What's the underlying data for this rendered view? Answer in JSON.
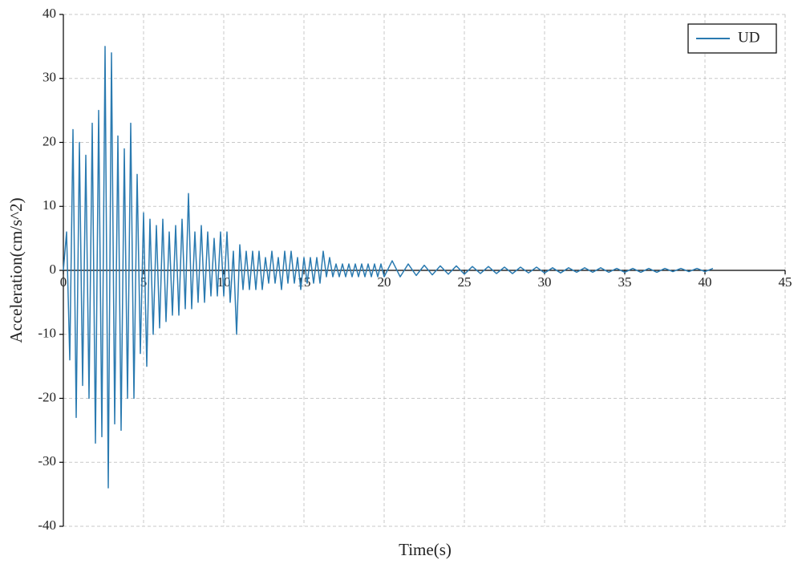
{
  "chart_data": {
    "type": "line",
    "xlabel": "Time(s)",
    "ylabel": "Acceleration(cm/s^2)",
    "xlim": [
      0,
      45
    ],
    "ylim": [
      -40,
      40
    ],
    "xticks": [
      0,
      5,
      10,
      15,
      20,
      25,
      30,
      35,
      40,
      45
    ],
    "yticks": [
      -40,
      -30,
      -20,
      -10,
      0,
      10,
      20,
      30,
      40
    ],
    "grid": true,
    "legend": "upper right",
    "x": [
      0,
      0.2,
      0.4,
      0.6,
      0.8,
      1.0,
      1.2,
      1.4,
      1.6,
      1.8,
      2.0,
      2.2,
      2.4,
      2.6,
      2.8,
      3.0,
      3.2,
      3.4,
      3.6,
      3.8,
      4.0,
      4.2,
      4.4,
      4.6,
      4.8,
      5.0,
      5.2,
      5.4,
      5.6,
      5.8,
      6.0,
      6.2,
      6.4,
      6.6,
      6.8,
      7.0,
      7.2,
      7.4,
      7.6,
      7.8,
      8.0,
      8.2,
      8.4,
      8.6,
      8.8,
      9.0,
      9.2,
      9.4,
      9.6,
      9.8,
      10.0,
      10.2,
      10.4,
      10.6,
      10.8,
      11.0,
      11.2,
      11.4,
      11.6,
      11.8,
      12.0,
      12.2,
      12.4,
      12.6,
      12.8,
      13.0,
      13.2,
      13.4,
      13.6,
      13.8,
      14.0,
      14.2,
      14.4,
      14.6,
      14.8,
      15.0,
      15.2,
      15.4,
      15.6,
      15.8,
      16.0,
      16.2,
      16.4,
      16.6,
      16.8,
      17.0,
      17.2,
      17.4,
      17.6,
      17.8,
      18.0,
      18.2,
      18.4,
      18.6,
      18.8,
      19.0,
      19.2,
      19.4,
      19.6,
      19.8,
      20,
      20.5,
      21,
      21.5,
      22,
      22.5,
      23,
      23.5,
      24,
      24.5,
      25,
      25.5,
      26,
      26.5,
      27,
      27.5,
      28,
      28.5,
      29,
      29.5,
      30,
      30.5,
      31,
      31.5,
      32,
      32.5,
      33,
      33.5,
      34,
      34.5,
      35,
      35.5,
      36,
      36.5,
      37,
      37.5,
      38,
      38.5,
      39,
      39.5,
      40,
      40.5
    ],
    "series": [
      {
        "name": "UD",
        "color": "#2a7ab0",
        "values": [
          0,
          6,
          -14,
          22,
          -23,
          20,
          -18,
          18,
          -20,
          23,
          -27,
          25,
          -26,
          35,
          -34,
          34,
          -24,
          21,
          -25,
          19,
          -20,
          23,
          -20,
          15,
          -13,
          9,
          -15,
          8,
          -10,
          7,
          -9,
          8,
          -8,
          6,
          -7,
          7,
          -7,
          8,
          -6,
          12,
          -6,
          6,
          -5,
          7,
          -5,
          6,
          -4,
          5,
          -4,
          6,
          -4,
          6,
          -5,
          3,
          -10,
          4,
          -3,
          3,
          -3,
          3,
          -3,
          3,
          -3,
          2,
          -2,
          3,
          -2,
          2,
          -3,
          3,
          -2,
          3,
          -2,
          2,
          -3,
          2,
          -2,
          2,
          -2,
          2,
          -2,
          3,
          -1,
          2,
          -1,
          1,
          -1,
          1,
          -1,
          1,
          -1,
          1,
          -1,
          1,
          -1,
          1,
          -1,
          1,
          -1,
          1,
          -1,
          1.5,
          -1,
          1,
          -0.8,
          0.8,
          -0.7,
          0.7,
          -0.6,
          0.7,
          -0.6,
          0.6,
          -0.5,
          0.6,
          -0.5,
          0.5,
          -0.5,
          0.5,
          -0.4,
          0.5,
          -0.4,
          0.4,
          -0.4,
          0.4,
          -0.3,
          0.4,
          -0.3,
          0.4,
          -0.3,
          0.3,
          -0.3,
          0.3,
          -0.3,
          0.3,
          -0.3,
          0.3,
          -0.2,
          0.3,
          -0.2,
          0.3,
          -0.2,
          0.3
        ]
      }
    ]
  }
}
